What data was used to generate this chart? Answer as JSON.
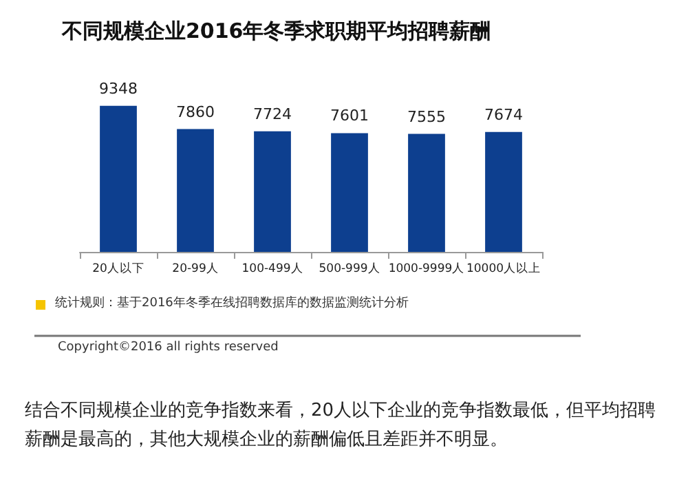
{
  "chart_data": {
    "type": "bar",
    "title": "不同规模企业2016年冬季求职期平均招聘薪酬",
    "categories": [
      "20人以下",
      "20-99人",
      "100-499人",
      "500-999人",
      "1000-9999人",
      "10000人以上"
    ],
    "values": [
      9348,
      7860,
      7724,
      7601,
      7555,
      7674
    ],
    "color": "#0d3f8f",
    "data_labels": true,
    "annotations": [
      "统计规则：基于2016年冬季在线招聘数据库的数据监测统计分析",
      "Copyright©2016 all rights reserved",
      "结合不同规模企业的竞争指数来看，20人以下企业的竞争指数最低，但平均招聘薪酬是最高的，其他大规模企业的薪酬偏低且差距并不明显。"
    ]
  }
}
